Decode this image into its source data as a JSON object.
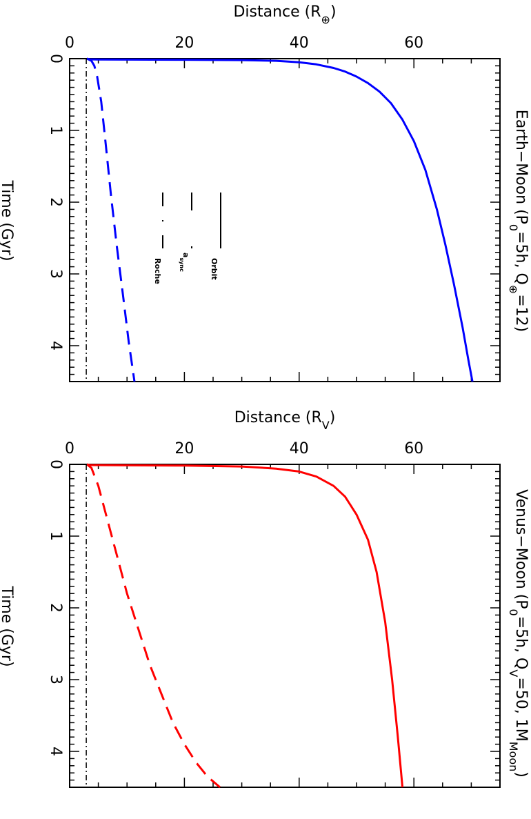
{
  "chart_data": [
    {
      "type": "line",
      "title": "Earth−Moon (P",
      "title_sub0": "0",
      "title_mid": "=5h,  Q",
      "title_sub1": "⊕",
      "title_end": "=12)",
      "xlabel": "Distance (R",
      "xlabel_sub": "⊕",
      "xlabel_end": ")",
      "ylabel": "Time (Gyr)",
      "xlim": [
        0,
        75
      ],
      "ylim": [
        4.5,
        0
      ],
      "xticks": [
        "0",
        "20",
        "40",
        "60"
      ],
      "yticks": [
        "0",
        "1",
        "2",
        "3",
        "4"
      ],
      "grid": false,
      "legend_position": "left-middle",
      "legend": [
        {
          "label": "Orbit",
          "style": "solid"
        },
        {
          "label": "a",
          "label_sub": "sync",
          "style": "dashed"
        },
        {
          "label": "Roche",
          "style": "dash-dot"
        }
      ],
      "series": [
        {
          "label": "Orbit",
          "color": "#0000ff",
          "style": "solid",
          "x": [
            3.0,
            3.5,
            5,
            10,
            20,
            30,
            36,
            40,
            43,
            46,
            48,
            50,
            52,
            54,
            56,
            58,
            60,
            62,
            64,
            65.5,
            67,
            68.5,
            69.5,
            70.2
          ],
          "y": [
            0,
            0.01,
            0.012,
            0.013,
            0.015,
            0.02,
            0.03,
            0.05,
            0.08,
            0.13,
            0.18,
            0.25,
            0.34,
            0.46,
            0.62,
            0.85,
            1.15,
            1.55,
            2.1,
            2.6,
            3.15,
            3.75,
            4.2,
            4.5
          ]
        },
        {
          "label": "a_sync",
          "color": "#0000ff",
          "style": "dashed",
          "x": [
            3.0,
            3.8,
            4.3,
            4.8,
            5.5,
            6.3,
            7.2,
            8.2,
            9.3,
            10.3,
            11.3
          ],
          "y": [
            0,
            0.03,
            0.1,
            0.25,
            0.6,
            1.2,
            1.9,
            2.6,
            3.3,
            3.95,
            4.5
          ]
        },
        {
          "label": "Roche",
          "color": "#000000",
          "style": "dash-dot",
          "x": [
            2.9,
            2.9
          ],
          "y": [
            0,
            4.5
          ]
        }
      ]
    },
    {
      "type": "line",
      "title": "Venus−Moon (P",
      "title_sub0": "0",
      "title_mid": "=5h,  Q",
      "title_sub1": "V",
      "title_end": "=50,  1M",
      "title_sub2": "Moon",
      "title_close": ")",
      "xlabel": "Distance (R",
      "xlabel_sub": "V",
      "xlabel_end": ")",
      "ylabel": "Time (Gyr)",
      "xlim": [
        0,
        75
      ],
      "ylim": [
        4.5,
        0
      ],
      "xticks": [
        "0",
        "20",
        "40",
        "60"
      ],
      "yticks": [
        "0",
        "1",
        "2",
        "3",
        "4"
      ],
      "grid": false,
      "series": [
        {
          "label": "Orbit",
          "color": "#ff0000",
          "style": "solid",
          "x": [
            3.0,
            3.5,
            10,
            20,
            30,
            36,
            40,
            43,
            46,
            48,
            50,
            52,
            53.5,
            55,
            56.2,
            57.2,
            58.0
          ],
          "y": [
            0,
            0.01,
            0.013,
            0.017,
            0.03,
            0.06,
            0.1,
            0.17,
            0.3,
            0.45,
            0.7,
            1.05,
            1.5,
            2.2,
            3.0,
            3.8,
            4.5
          ]
        },
        {
          "label": "a_sync",
          "color": "#ff0000",
          "style": "dashed",
          "x": [
            3.0,
            3.8,
            5,
            6.5,
            8,
            10,
            12,
            14,
            16,
            18,
            20,
            22,
            24,
            26.2
          ],
          "y": [
            0,
            0.05,
            0.3,
            0.75,
            1.2,
            1.8,
            2.3,
            2.8,
            3.2,
            3.6,
            3.9,
            4.15,
            4.35,
            4.5
          ]
        },
        {
          "label": "Roche",
          "color": "#000000",
          "style": "dash-dot",
          "x": [
            2.9,
            2.9
          ],
          "y": [
            0,
            4.5
          ]
        }
      ]
    }
  ]
}
